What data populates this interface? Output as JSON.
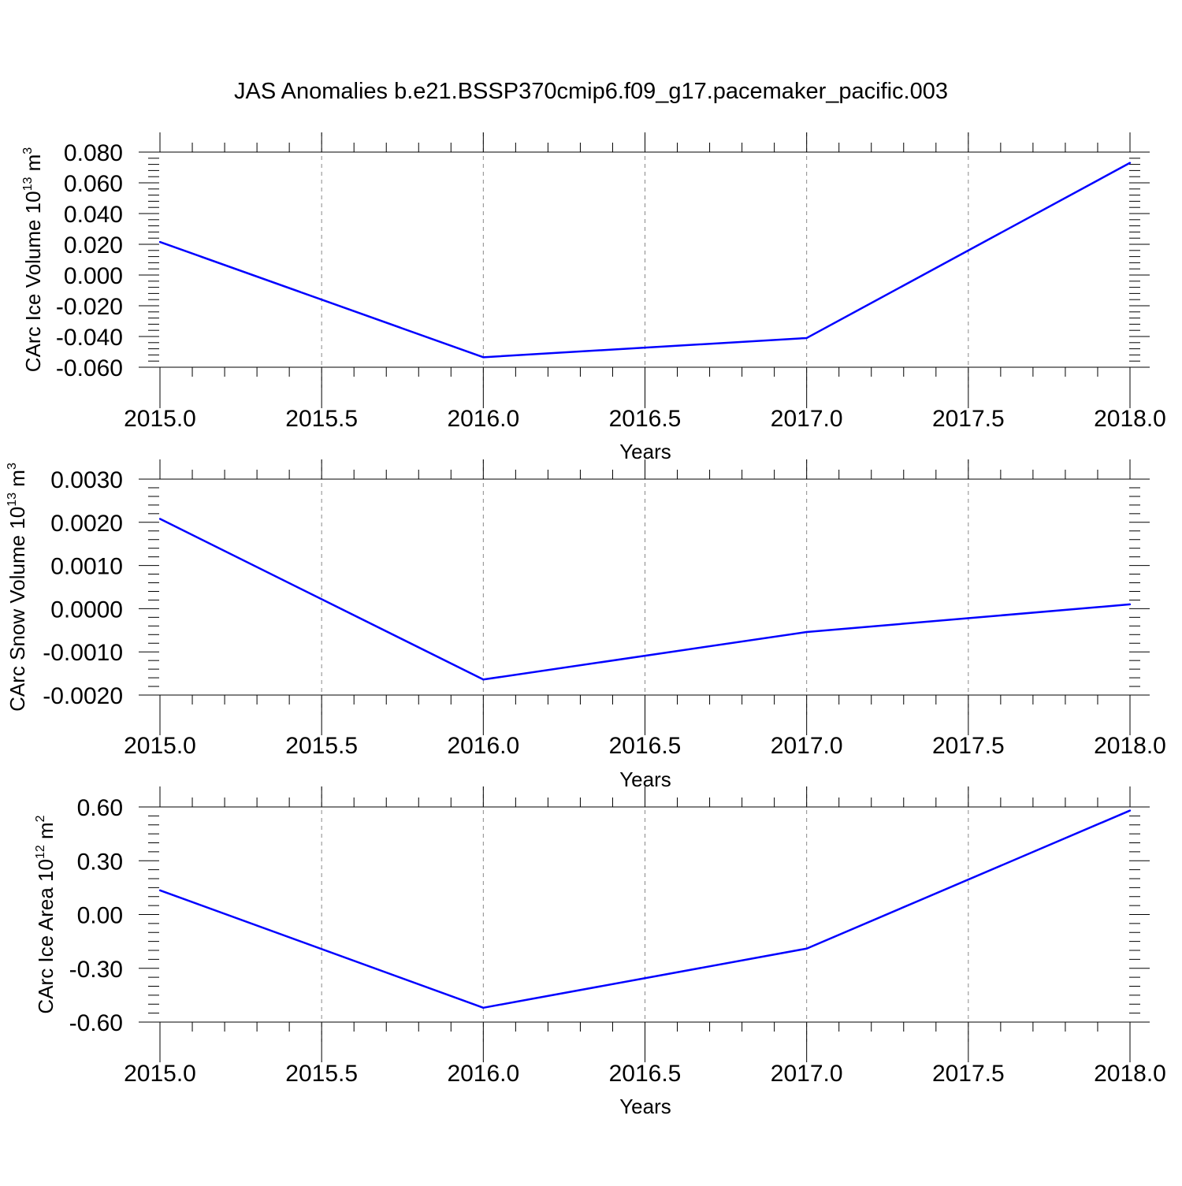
{
  "figure": {
    "title": "JAS Anomalies b.e21.BSSP370cmip6.f09_g17.pacemaker_pacific.003",
    "line_color": "#0000ff",
    "grid_color": "#888888"
  },
  "chart_data": [
    {
      "type": "line",
      "title": "",
      "xlabel": "Years",
      "ylabel": {
        "text": "CArc Ice Volume 10",
        "exp": "13",
        "unit": " m",
        "unit_exp": "3"
      },
      "xlim": [
        2015.0,
        2018.0
      ],
      "ylim": [
        -0.06,
        0.08
      ],
      "x_ticks": [
        "2015.0",
        "2015.5",
        "2016.0",
        "2016.5",
        "2017.0",
        "2017.5",
        "2018.0"
      ],
      "y_ticks": [
        "-0.060",
        "-0.040",
        "-0.020",
        "0.000",
        "0.020",
        "0.040",
        "0.060",
        "0.080"
      ],
      "grid": "vertical dashed",
      "series": [
        {
          "x": [
            2015.0,
            2016.0,
            2017.0,
            2018.0
          ],
          "values": [
            0.0215,
            -0.0535,
            -0.041,
            0.073
          ]
        }
      ]
    },
    {
      "type": "line",
      "title": "",
      "xlabel": "Years",
      "ylabel": {
        "text": "CArc Snow Volume 10",
        "exp": "13",
        "unit": " m",
        "unit_exp": "3"
      },
      "xlim": [
        2015.0,
        2018.0
      ],
      "ylim": [
        -0.002,
        0.003
      ],
      "x_ticks": [
        "2015.0",
        "2015.5",
        "2016.0",
        "2016.5",
        "2017.0",
        "2017.5",
        "2018.0"
      ],
      "y_ticks": [
        "-0.0020",
        "-0.0010",
        "0.0000",
        "0.0010",
        "0.0020",
        "0.0030"
      ],
      "grid": "vertical dashed",
      "series": [
        {
          "x": [
            2015.0,
            2016.0,
            2017.0,
            2018.0
          ],
          "values": [
            0.00208,
            -0.00164,
            -0.00054,
            0.0001
          ]
        }
      ]
    },
    {
      "type": "line",
      "title": "",
      "xlabel": "Years",
      "ylabel": {
        "text": "CArc Ice Area 10",
        "exp": "12",
        "unit": " m",
        "unit_exp": "2"
      },
      "xlim": [
        2015.0,
        2018.0
      ],
      "ylim": [
        -0.6,
        0.6
      ],
      "x_ticks": [
        "2015.0",
        "2015.5",
        "2016.0",
        "2016.5",
        "2017.0",
        "2017.5",
        "2018.0"
      ],
      "y_ticks": [
        "-0.60",
        "-0.30",
        "0.00",
        "0.30",
        "0.60"
      ],
      "grid": "vertical dashed",
      "series": [
        {
          "x": [
            2015.0,
            2016.0,
            2017.0,
            2018.0
          ],
          "values": [
            0.135,
            -0.52,
            -0.19,
            0.58
          ]
        }
      ]
    }
  ]
}
